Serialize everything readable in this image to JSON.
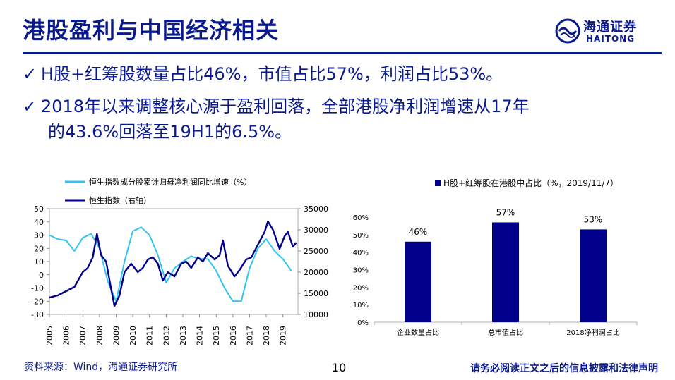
{
  "slide": {
    "title": "港股盈利与中国经济相关",
    "logo_cn": "海通证券",
    "logo_en": "HAITONG",
    "bullet1": "H股+红筹股数量占比46%，市值占比57%，利润占比53%。",
    "bullet2_line1": "2018年以来调整核心源于盈利回落，全部港股净利润增速从17年",
    "bullet2_line2": "的43.6%回落至19H1的6.5%。",
    "check": "✓",
    "source": "资料来源：Wind，海通证券研究所",
    "page": "10",
    "disclaimer": "请务必阅读正文之后的信息披露和法律声明"
  },
  "chart_data": [
    {
      "type": "line",
      "series": [
        {
          "name": "恒生指数成分股累计归母净利润同比增速（%）",
          "axis": "left",
          "color": "#33c3ef",
          "x": [
            2005.0,
            2005.5,
            2006.0,
            2006.5,
            2007.0,
            2007.5,
            2008.0,
            2008.5,
            2009.0,
            2009.5,
            2010.0,
            2010.5,
            2011.0,
            2011.5,
            2012.0,
            2012.5,
            2013.0,
            2013.5,
            2014.0,
            2014.5,
            2015.0,
            2015.5,
            2016.0,
            2016.5,
            2017.0,
            2017.5,
            2018.0,
            2018.5,
            2019.0,
            2019.5
          ],
          "values": [
            30,
            27,
            26,
            18,
            28,
            31,
            20,
            -5,
            -20,
            10,
            33,
            36,
            30,
            15,
            -6,
            5,
            10,
            14,
            12,
            12,
            3,
            -10,
            -20,
            -20,
            5,
            20,
            27,
            18,
            12,
            3
          ]
        },
        {
          "name": "恒生指数（右轴）",
          "axis": "right",
          "color": "#00008b",
          "x": [
            2005.0,
            2005.5,
            2006.0,
            2006.5,
            2007.0,
            2007.3,
            2007.6,
            2007.85,
            2008.1,
            2008.4,
            2008.7,
            2008.9,
            2009.2,
            2009.5,
            2009.9,
            2010.3,
            2010.6,
            2010.9,
            2011.2,
            2011.5,
            2011.8,
            2012.1,
            2012.5,
            2012.9,
            2013.2,
            2013.5,
            2013.9,
            2014.2,
            2014.5,
            2014.9,
            2015.2,
            2015.4,
            2015.7,
            2016.1,
            2016.4,
            2016.8,
            2017.1,
            2017.5,
            2017.9,
            2018.1,
            2018.4,
            2018.8,
            2019.1,
            2019.3,
            2019.6,
            2019.8
          ],
          "values": [
            14000,
            14500,
            15500,
            16500,
            20000,
            21000,
            23500,
            29000,
            24000,
            22500,
            16000,
            12000,
            14500,
            20000,
            22000,
            20000,
            21000,
            23000,
            23500,
            22000,
            18000,
            20000,
            19000,
            22000,
            22500,
            21000,
            23500,
            22500,
            24500,
            23000,
            24000,
            27500,
            21500,
            19000,
            20500,
            23000,
            23500,
            26500,
            29500,
            32000,
            30000,
            25500,
            28500,
            29500,
            26000,
            27000
          ]
        }
      ],
      "xlim": [
        2005,
        2019.9
      ],
      "x_ticks": [
        "2005",
        "2006",
        "2007",
        "2008",
        "2009",
        "2010",
        "2011",
        "2012",
        "2013",
        "2014",
        "2015",
        "2016",
        "2017",
        "2018",
        "2019"
      ],
      "y_left_ticks": [
        "50",
        "40",
        "30",
        "20",
        "10",
        "0",
        "-10",
        "-20",
        "-30"
      ],
      "y_left_lim": [
        -30,
        50
      ],
      "y_right_ticks": [
        "35000",
        "30000",
        "25000",
        "20000",
        "15000",
        "10000"
      ],
      "y_right_lim": [
        10000,
        35000
      ]
    },
    {
      "type": "bar",
      "title": "H股+红筹股在港股中占比（%，2019/11/7）",
      "categories": [
        "企业数量占比",
        "总市值占比",
        "2018净利润占比"
      ],
      "values": [
        46,
        57,
        53
      ],
      "data_labels": [
        "46%",
        "57%",
        "53%"
      ],
      "color": "#00008b",
      "y_ticks": [
        "60%",
        "50%",
        "40%",
        "30%",
        "20%",
        "10%",
        "0%"
      ],
      "ylim": [
        0,
        60
      ]
    }
  ]
}
